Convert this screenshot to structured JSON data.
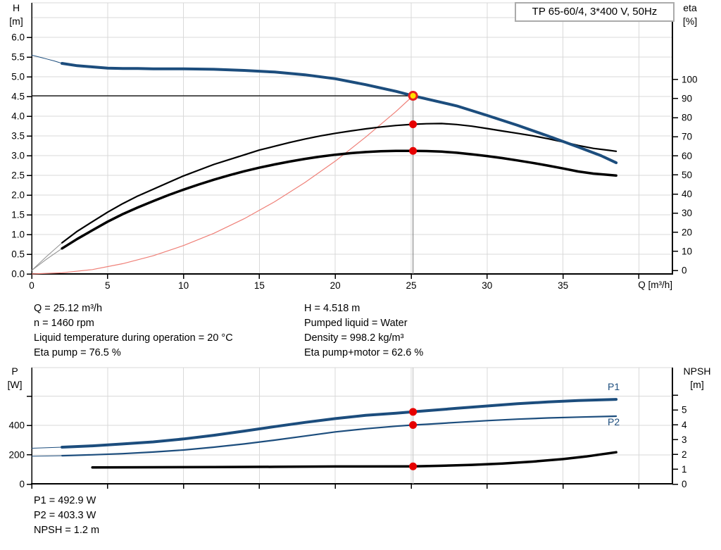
{
  "colors": {
    "pump_blue": "#1c4d7d",
    "curve_black": "#000000",
    "lead_gray": "#8f8f8f",
    "system_red": "#ef8078",
    "dot_red": "#e60000",
    "duty_fill": "#ffdf00",
    "duty_ring": "#e62020",
    "grid": "#d9d9d9",
    "axis_black": "#000000",
    "ref_dark": "#000000",
    "ref_mid": "#8c8c8c",
    "ref_light": "#c9c9c9",
    "title_border": "#ababab"
  },
  "annotations": {
    "left": [
      "Q = 25.12 m³/h",
      "n = 1460 rpm",
      "Liquid temperature during operation = 20 °C",
      "Eta pump = 76.5 %"
    ],
    "right": [
      "H = 4.518 m",
      "Pumped liquid = Water",
      "Density = 998.2 kg/m³",
      "Eta pump+motor = 62.6 %"
    ],
    "bottom": [
      "P1 = 492.9 W",
      "P2 = 403.3 W",
      "NPSH = 1.2 m"
    ]
  },
  "chart_data": [
    {
      "type": "line",
      "title": "TP 65-60/4, 3*400 V, 50Hz",
      "xlabel": "Q [m³/h]",
      "ylabel_left_lines": [
        "H",
        "[m]"
      ],
      "ylabel_right_lines": [
        "eta",
        "[%]"
      ],
      "xlim": [
        0,
        42.2
      ],
      "ylim_left": [
        0,
        6.8
      ],
      "ylim_right": [
        0,
        138
      ],
      "x_axis": {
        "values": [
          0,
          5,
          10,
          15,
          20,
          25,
          30,
          35,
          40
        ],
        "labels": [
          "0",
          "5",
          "10",
          "15",
          "20",
          "25",
          "30",
          "35",
          ""
        ]
      },
      "y_left": {
        "values": [
          0,
          0.5,
          1,
          1.5,
          2,
          2.5,
          3,
          3.5,
          4,
          4.5,
          5,
          5.5,
          6
        ],
        "labels": [
          "0.0",
          "0.5",
          "1.0",
          "1.5",
          "2.0",
          "2.5",
          "3.0",
          "3.5",
          "4.0",
          "4.5",
          "5.0",
          "5.5",
          "6.0"
        ],
        "grid_values": [
          0.5,
          1,
          1.5,
          2,
          2.5,
          3,
          3.5,
          4,
          4.5,
          5,
          5.5,
          6,
          6.5
        ]
      },
      "y_right": {
        "values": [
          0,
          10,
          20,
          30,
          40,
          50,
          60,
          70,
          80,
          90,
          100
        ],
        "labels": [
          "0",
          "10",
          "20",
          "30",
          "40",
          "50",
          "60",
          "70",
          "80",
          "90",
          "100"
        ],
        "grid_values": []
      },
      "series": [
        {
          "name": "H",
          "axis": "left",
          "color": "pump_blue",
          "lead_thin": true,
          "points": [
            [
              0,
              5.55
            ],
            [
              0.5,
              5.5
            ],
            [
              1,
              5.45
            ],
            [
              1.5,
              5.4
            ],
            [
              2,
              5.34
            ],
            [
              3,
              5.28
            ],
            [
              4,
              5.25
            ],
            [
              5,
              5.22
            ],
            [
              6,
              5.21
            ],
            [
              7,
              5.21
            ],
            [
              8,
              5.2
            ],
            [
              10,
              5.2
            ],
            [
              12,
              5.19
            ],
            [
              14,
              5.16
            ],
            [
              16,
              5.12
            ],
            [
              18,
              5.05
            ],
            [
              20,
              4.95
            ],
            [
              22,
              4.8
            ],
            [
              24,
              4.63
            ],
            [
              25.12,
              4.518
            ],
            [
              26,
              4.44
            ],
            [
              28,
              4.26
            ],
            [
              30,
              4.02
            ],
            [
              32,
              3.77
            ],
            [
              34,
              3.5
            ],
            [
              36,
              3.22
            ],
            [
              37.5,
              3.0
            ],
            [
              38.5,
              2.82
            ]
          ]
        },
        {
          "name": "Eta pump",
          "axis": "right",
          "color": "curve_black",
          "lead_thin": true,
          "points": [
            [
              0,
              0
            ],
            [
              1,
              7.5
            ],
            [
              2,
              14.5
            ],
            [
              3,
              20.5
            ],
            [
              4,
              25.5
            ],
            [
              5,
              30.5
            ],
            [
              6,
              35
            ],
            [
              7,
              39
            ],
            [
              8,
              42.5
            ],
            [
              9,
              46
            ],
            [
              10,
              49.5
            ],
            [
              11,
              52.5
            ],
            [
              12,
              55.5
            ],
            [
              13,
              58
            ],
            [
              14,
              60.5
            ],
            [
              15,
              63
            ],
            [
              16,
              65
            ],
            [
              17,
              67
            ],
            [
              18,
              68.8
            ],
            [
              19,
              70.4
            ],
            [
              20,
              71.8
            ],
            [
              21,
              73
            ],
            [
              22,
              74.1
            ],
            [
              23,
              75.1
            ],
            [
              24,
              75.9
            ],
            [
              25.12,
              76.5
            ],
            [
              26,
              76.8
            ],
            [
              27,
              76.9
            ],
            [
              28,
              76.4
            ],
            [
              29,
              75.5
            ],
            [
              30,
              74.3
            ],
            [
              31,
              73
            ],
            [
              32,
              71.8
            ],
            [
              33,
              70.5
            ],
            [
              34,
              69
            ],
            [
              35,
              67.3
            ],
            [
              36,
              65.4
            ],
            [
              37,
              63.9
            ],
            [
              38,
              62.9
            ],
            [
              38.5,
              62.4
            ]
          ]
        },
        {
          "name": "Eta pump+motor",
          "axis": "right",
          "color": "curve_black",
          "lead_thin": true,
          "points": [
            [
              0,
              0
            ],
            [
              1,
              6
            ],
            [
              2,
              11.5
            ],
            [
              3,
              16.5
            ],
            [
              4,
              21
            ],
            [
              5,
              25.5
            ],
            [
              6,
              29.5
            ],
            [
              7,
              33
            ],
            [
              8,
              36.3
            ],
            [
              9,
              39.4
            ],
            [
              10,
              42.3
            ],
            [
              11,
              45
            ],
            [
              12,
              47.5
            ],
            [
              13,
              49.8
            ],
            [
              14,
              51.9
            ],
            [
              15,
              53.8
            ],
            [
              16,
              55.5
            ],
            [
              17,
              57
            ],
            [
              18,
              58.4
            ],
            [
              19,
              59.6
            ],
            [
              20,
              60.6
            ],
            [
              21,
              61.4
            ],
            [
              22,
              62
            ],
            [
              23,
              62.4
            ],
            [
              24,
              62.6
            ],
            [
              25.12,
              62.6
            ],
            [
              26,
              62.5
            ],
            [
              27,
              62.2
            ],
            [
              28,
              61.6
            ],
            [
              29,
              60.8
            ],
            [
              30,
              59.9
            ],
            [
              31,
              58.8
            ],
            [
              32,
              57.6
            ],
            [
              33,
              56.3
            ],
            [
              34,
              54.9
            ],
            [
              35,
              53.4
            ],
            [
              36,
              51.8
            ],
            [
              37,
              50.7
            ],
            [
              38.5,
              49.7
            ]
          ]
        },
        {
          "name": "System curve",
          "axis": "left",
          "color": "system_red",
          "lead_thin": false,
          "points": [
            [
              0,
              0
            ],
            [
              2,
              0.03
            ],
            [
              4,
              0.11
            ],
            [
              6,
              0.26
            ],
            [
              8,
              0.46
            ],
            [
              10,
              0.72
            ],
            [
              12,
              1.03
            ],
            [
              14,
              1.4
            ],
            [
              16,
              1.83
            ],
            [
              18,
              2.32
            ],
            [
              20,
              2.86
            ],
            [
              22,
              3.47
            ],
            [
              24,
              4.12
            ],
            [
              25.12,
              4.518
            ]
          ]
        }
      ],
      "ref_lines": [
        {
          "dir": "h",
          "axis": "left",
          "value": 4.518,
          "q0": 0,
          "q1": 25.12,
          "tone": "dark"
        },
        {
          "dir": "v",
          "q": 25.12,
          "axis": "left",
          "v0": 0,
          "v1": 4.518,
          "tone": "mid"
        }
      ],
      "markers": {
        "duty_point": {
          "q": 25.12,
          "axis": "left",
          "value": 4.518
        },
        "dots": [
          {
            "q": 25.12,
            "axis": "right",
            "value": 76.5,
            "name": "eta-pump-dot"
          },
          {
            "q": 25.12,
            "axis": "right",
            "value": 62.6,
            "name": "eta-pump-motor-dot"
          }
        ]
      }
    },
    {
      "type": "line",
      "title": "",
      "xlabel": "",
      "ylabel_left_lines": [
        "P",
        "[W]"
      ],
      "ylabel_right_lines": [
        "NPSH",
        "[m]"
      ],
      "xlim": [
        0,
        42.2
      ],
      "ylim_left": [
        0,
        785
      ],
      "ylim_right": [
        0,
        7.8
      ],
      "x_axis": {
        "values": [
          0,
          5,
          10,
          15,
          20,
          25,
          30,
          35,
          40
        ],
        "labels": [
          "",
          "",
          "",
          "",
          "",
          "",
          "",
          "",
          ""
        ]
      },
      "y_left": {
        "values": [
          0,
          200,
          400,
          600
        ],
        "labels": [
          "0",
          "200",
          "400",
          ""
        ],
        "grid_values": [
          200,
          400,
          600
        ]
      },
      "y_right": {
        "values": [
          0,
          1,
          2,
          3,
          4,
          5,
          6
        ],
        "labels": [
          "0",
          "1",
          "2",
          "3",
          "4",
          "5",
          ""
        ],
        "grid_values": []
      },
      "series": [
        {
          "name": "P1",
          "axis": "left",
          "color": "pump_blue",
          "lead_thin": true,
          "points": [
            [
              0,
              245
            ],
            [
              1,
              248
            ],
            [
              2,
              252
            ],
            [
              4,
              261
            ],
            [
              6,
              274
            ],
            [
              8,
              288
            ],
            [
              10,
              308
            ],
            [
              12,
              333
            ],
            [
              14,
              362
            ],
            [
              16,
              392
            ],
            [
              18,
              421
            ],
            [
              20,
              447
            ],
            [
              22,
              469
            ],
            [
              24,
              484
            ],
            [
              25.12,
              492.9
            ],
            [
              26,
              500
            ],
            [
              28,
              517
            ],
            [
              30,
              533
            ],
            [
              32,
              548
            ],
            [
              34,
              560
            ],
            [
              36,
              570
            ],
            [
              38.5,
              578
            ]
          ]
        },
        {
          "name": "P2",
          "axis": "left",
          "color": "pump_blue",
          "lead_thin": true,
          "points": [
            [
              0,
              190
            ],
            [
              2,
              194
            ],
            [
              4,
              200
            ],
            [
              6,
              208
            ],
            [
              8,
              219
            ],
            [
              10,
              233
            ],
            [
              12,
              252
            ],
            [
              14,
              274
            ],
            [
              16,
              300
            ],
            [
              18,
              328
            ],
            [
              20,
              356
            ],
            [
              22,
              378
            ],
            [
              24,
              395
            ],
            [
              25.12,
              403.3
            ],
            [
              26,
              408
            ],
            [
              28,
              421
            ],
            [
              30,
              433
            ],
            [
              32,
              443
            ],
            [
              34,
              451
            ],
            [
              36,
              457
            ],
            [
              38.5,
              463
            ]
          ]
        },
        {
          "name": "NPSH",
          "axis": "right",
          "color": "curve_black",
          "lead_thin": true,
          "points": [
            [
              0,
              1.13
            ],
            [
              4,
              1.13
            ],
            [
              8,
              1.14
            ],
            [
              12,
              1.15
            ],
            [
              16,
              1.17
            ],
            [
              20,
              1.19
            ],
            [
              25.12,
              1.2
            ],
            [
              27,
              1.24
            ],
            [
              29,
              1.3
            ],
            [
              31,
              1.39
            ],
            [
              33,
              1.52
            ],
            [
              35,
              1.69
            ],
            [
              36.5,
              1.86
            ],
            [
              38,
              2.08
            ],
            [
              38.5,
              2.15
            ]
          ]
        }
      ],
      "ref_lines": [
        {
          "dir": "v",
          "q": 25.12,
          "tone": "light"
        }
      ],
      "markers": {
        "dots": [
          {
            "q": 25.12,
            "axis": "left",
            "value": 492.9,
            "name": "p1-dot"
          },
          {
            "q": 25.12,
            "axis": "left",
            "value": 403.3,
            "name": "p2-dot"
          },
          {
            "q": 25.12,
            "axis": "right",
            "value": 1.2,
            "name": "npsh-dot"
          }
        ]
      }
    }
  ]
}
